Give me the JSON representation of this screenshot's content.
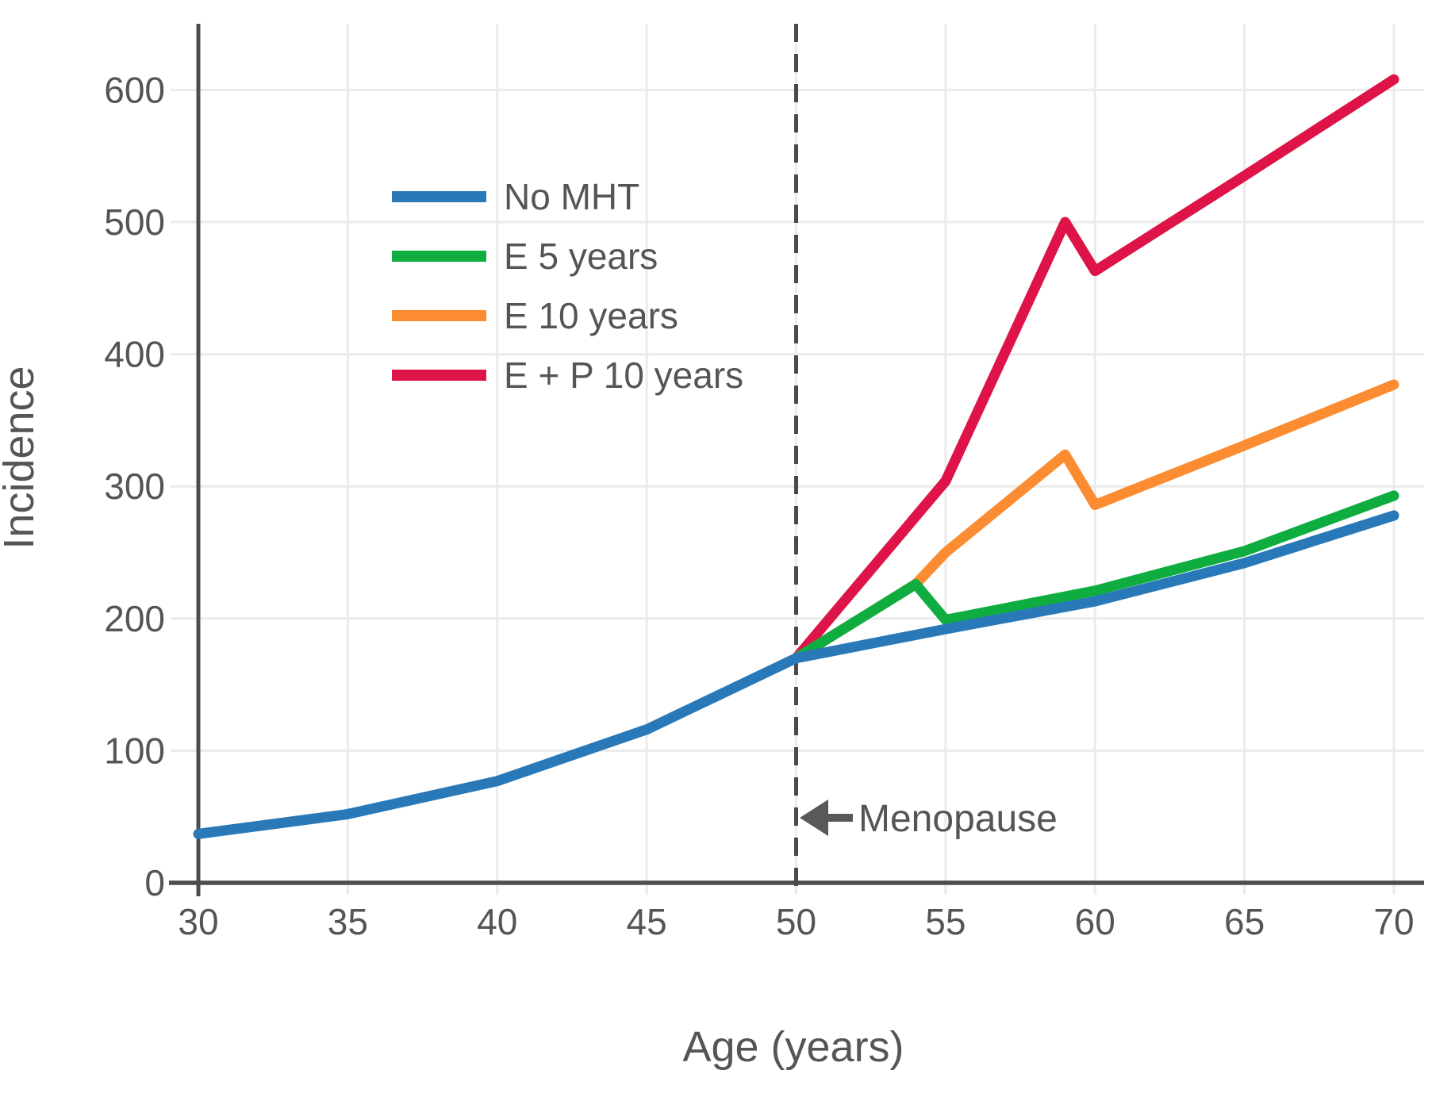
{
  "chart_data": {
    "type": "line",
    "title": "",
    "xlabel": "Age (years)",
    "ylabel": "Incidence",
    "xlim": [
      30,
      71
    ],
    "ylim": [
      0,
      650
    ],
    "xticks": [
      30,
      35,
      40,
      45,
      50,
      55,
      60,
      65,
      70
    ],
    "yticks": [
      0,
      100,
      200,
      300,
      400,
      500,
      600
    ],
    "grid": true,
    "legend_position": "upper-left-inside",
    "series": [
      {
        "name": "No MHT",
        "color": "#2979B9",
        "points": [
          [
            30,
            37
          ],
          [
            35,
            52
          ],
          [
            40,
            77
          ],
          [
            45,
            116
          ],
          [
            50,
            170
          ],
          [
            55,
            192
          ],
          [
            60,
            213
          ],
          [
            65,
            242
          ],
          [
            70,
            278
          ]
        ]
      },
      {
        "name": "E 5 years",
        "color": "#0FAD3F",
        "points": [
          [
            50,
            170
          ],
          [
            54,
            226
          ],
          [
            55,
            199
          ],
          [
            60,
            221
          ],
          [
            65,
            251
          ],
          [
            70,
            293
          ]
        ]
      },
      {
        "name": "E 10 years",
        "color": "#FC8C31",
        "points": [
          [
            50,
            170
          ],
          [
            54,
            226
          ],
          [
            55,
            250
          ],
          [
            59,
            324
          ],
          [
            60,
            286
          ],
          [
            65,
            331
          ],
          [
            70,
            377
          ]
        ]
      },
      {
        "name": "E + P 10 years",
        "color": "#DE1347",
        "points": [
          [
            50,
            170
          ],
          [
            55,
            304
          ],
          [
            59,
            500
          ],
          [
            60,
            463
          ],
          [
            65,
            535
          ],
          [
            70,
            608
          ]
        ]
      }
    ],
    "annotations": {
      "menopause_label": "Menopause",
      "menopause_line_x": 50,
      "arrow_direction": "left"
    }
  },
  "colors": {
    "background": "#ffffff",
    "gridline": "#ebebeb",
    "axis": "#4d4d4d",
    "dashed_line": "#4a4a4a",
    "text": "#555555",
    "arrow": "#595959"
  }
}
